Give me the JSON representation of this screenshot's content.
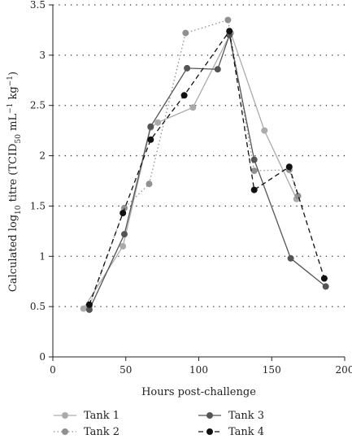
{
  "chart_data": {
    "type": "line",
    "xlabel": "Hours post-challenge",
    "ylabel_parts": {
      "prefix": "Calculated log",
      "log_base": "10",
      "mid": " titre (TCID",
      "tcid_sub": "50",
      "unit": " mL",
      "unit_exp1": "−1",
      "unit_kg": " kg",
      "unit_exp2": "−1",
      "suffix": ")"
    },
    "xlim": [
      0,
      200
    ],
    "ylim": [
      0,
      3.5
    ],
    "x_ticks": [
      0,
      50,
      100,
      150,
      200
    ],
    "y_ticks": [
      0,
      0.5,
      1,
      1.5,
      2,
      2.5,
      3,
      3.5
    ],
    "y_tick_labels": [
      "0",
      "0.5",
      "1",
      "1.5",
      "2",
      "2.5",
      "3",
      "3.5"
    ],
    "grid": "horizontal-dotted",
    "legend_position": "bottom",
    "series": [
      {
        "name": "Tank 1",
        "color": "#aaaaaa",
        "line_style": "solid",
        "points": [
          [
            21,
            0.48
          ],
          [
            48,
            1.1
          ],
          [
            67,
            2.28
          ],
          [
            72,
            2.33
          ],
          [
            96,
            2.48
          ],
          [
            122,
            3.22
          ],
          [
            145,
            2.25
          ],
          [
            167,
            1.57
          ]
        ]
      },
      {
        "name": "Tank 2",
        "color": "#909090",
        "line_style": "dotted",
        "points": [
          [
            25,
            0.5
          ],
          [
            49,
            1.48
          ],
          [
            66,
            1.72
          ],
          [
            91,
            3.22
          ],
          [
            120,
            3.35
          ],
          [
            138,
            1.85
          ],
          [
            162,
            1.86
          ],
          [
            168,
            1.6
          ]
        ]
      },
      {
        "name": "Tank 3",
        "color": "#555555",
        "line_style": "solid",
        "points": [
          [
            25,
            0.47
          ],
          [
            49,
            1.22
          ],
          [
            67,
            2.29
          ],
          [
            92,
            2.87
          ],
          [
            113,
            2.86
          ],
          [
            121,
            3.2
          ],
          [
            138,
            1.96
          ],
          [
            163,
            0.98
          ],
          [
            187,
            0.7
          ]
        ]
      },
      {
        "name": "Tank 4",
        "color": "#111111",
        "line_style": "dashed",
        "points": [
          [
            25,
            0.52
          ],
          [
            48,
            1.43
          ],
          [
            67,
            2.16
          ],
          [
            90,
            2.6
          ],
          [
            121,
            3.24
          ],
          [
            138,
            1.66
          ],
          [
            162,
            1.89
          ],
          [
            186,
            0.78
          ]
        ]
      }
    ]
  }
}
